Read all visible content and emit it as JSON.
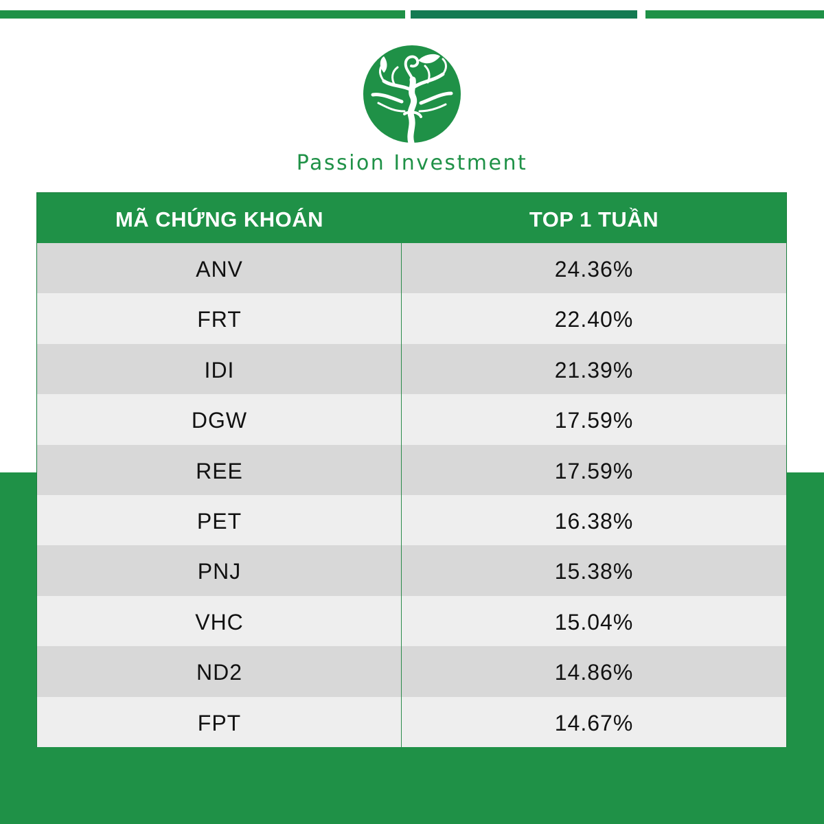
{
  "brand": {
    "name": "Passion Investment"
  },
  "colors": {
    "primary_green": "#1f9147",
    "dark_green": "#137a52",
    "row_dark": "#d8d8d8",
    "row_light": "#eeeeee"
  },
  "table": {
    "headers": [
      "MÃ CHỨNG KHOÁN",
      "TOP 1 TUẦN"
    ],
    "rows": [
      {
        "code": "ANV",
        "value": "24.36%"
      },
      {
        "code": "FRT",
        "value": "22.40%"
      },
      {
        "code": "IDI",
        "value": "21.39%"
      },
      {
        "code": "DGW",
        "value": "17.59%"
      },
      {
        "code": "REE",
        "value": "17.59%"
      },
      {
        "code": "PET",
        "value": "16.38%"
      },
      {
        "code": "PNJ",
        "value": "15.38%"
      },
      {
        "code": "VHC",
        "value": "15.04%"
      },
      {
        "code": "ND2",
        "value": "14.86%"
      },
      {
        "code": "FPT",
        "value": "14.67%"
      }
    ]
  }
}
